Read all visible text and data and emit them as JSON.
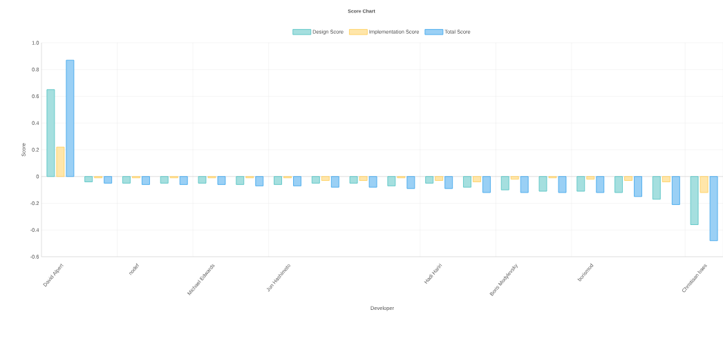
{
  "chart_data": {
    "type": "bar",
    "title": "Score Chart",
    "xlabel": "Developer",
    "ylabel": "Score",
    "categories": [
      "David Alpert",
      null,
      "nodef",
      null,
      "Michael Edwards",
      null,
      "Jun Hashimoto",
      null,
      null,
      null,
      "Hadi Hariri",
      null,
      "Boris Modylevsky",
      null,
      "borismod",
      null,
      null,
      "Christiaan baes"
    ],
    "series": [
      {
        "name": "Design Score",
        "color": "#4bc0c0",
        "values": [
          0.65,
          -0.04,
          -0.05,
          -0.05,
          -0.05,
          -0.06,
          -0.06,
          -0.05,
          -0.05,
          -0.07,
          -0.05,
          -0.08,
          -0.1,
          -0.11,
          -0.11,
          -0.12,
          -0.17,
          -0.36
        ]
      },
      {
        "name": "Implementation Score",
        "color": "#ffcd56",
        "values": [
          0.22,
          -0.01,
          -0.01,
          -0.01,
          -0.01,
          -0.01,
          -0.01,
          -0.03,
          -0.03,
          -0.01,
          -0.03,
          -0.04,
          -0.02,
          -0.01,
          -0.02,
          -0.03,
          -0.04,
          -0.12
        ]
      },
      {
        "name": "Total Score",
        "color": "#36a2eb",
        "values": [
          0.87,
          -0.05,
          -0.06,
          -0.06,
          -0.06,
          -0.07,
          -0.07,
          -0.08,
          -0.08,
          -0.09,
          -0.09,
          -0.12,
          -0.12,
          -0.12,
          -0.12,
          -0.15,
          -0.21,
          -0.48
        ]
      }
    ],
    "ylim": [
      -0.6,
      1.0
    ],
    "yticks": [
      -0.6,
      -0.4,
      -0.2,
      0,
      0.2,
      0.4,
      0.6,
      0.8,
      {
        "value": 1.0,
        "label": "1.0"
      }
    ],
    "grid": true,
    "legend": "top"
  }
}
